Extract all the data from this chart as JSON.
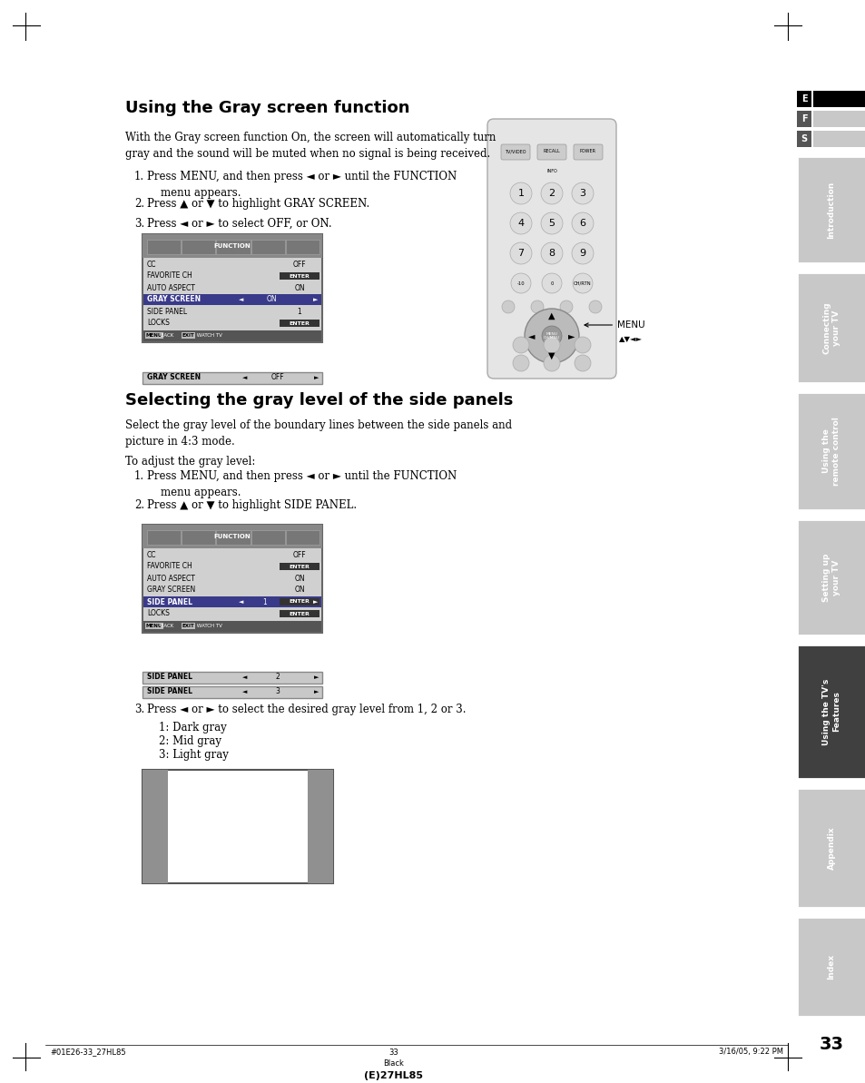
{
  "bg_color": "#ffffff",
  "title1": "Using the Gray screen function",
  "title2": "Selecting the gray level of the side panels",
  "body1": "With the Gray screen function On, the screen will automatically turn\ngray and the sound will be muted when no signal is being received.",
  "steps1": [
    "Press MENU, and then press ◄ or ► until the FUNCTION\n    menu appears.",
    "Press ▲ or ▼ to highlight GRAY SCREEN.",
    "Press ◄ or ► to select OFF, or ON."
  ],
  "body2": "Select the gray level of the boundary lines between the side panels and\npicture in 4:3 mode.",
  "pre2": "To adjust the gray level:",
  "steps2": [
    "Press MENU, and then press ◄ or ► until the FUNCTION\n    menu appears.",
    "Press ▲ or ▼ to highlight SIDE PANEL."
  ],
  "step3_text": "Press ◄ or ► to select the desired gray level from 1, 2 or 3.",
  "gray_levels": [
    "1: Dark gray",
    "2: Mid gray",
    "3: Light gray"
  ],
  "footer_left": "#01E26-33_27HL85",
  "footer_center": "33",
  "footer_right": "3/16/05, 9:22 PM",
  "footer_black": "Black",
  "footer_model": "(E)27HL85",
  "page_num": "33",
  "tab_sections": [
    "Introduction",
    "Connecting\nyour TV",
    "Using the\nremote control",
    "Setting up\nyour TV",
    "Using the TV's\nFeatures",
    "Appendix",
    "Index"
  ],
  "tab_active": 4,
  "tab_section_colors": [
    "#c8c8c8",
    "#c8c8c8",
    "#c8c8c8",
    "#c8c8c8",
    "#404040",
    "#c8c8c8",
    "#c8c8c8"
  ],
  "menu1_rows": [
    [
      "CC",
      "OFF",
      false,
      false
    ],
    [
      "FAVORITE CH",
      "ENTER",
      false,
      true
    ],
    [
      "AUTO ASPECT",
      "ON",
      false,
      false
    ],
    [
      "GRAY SCREEN",
      "ON",
      true,
      false
    ],
    [
      "SIDE PANEL",
      "1",
      false,
      false
    ],
    [
      "LOCKS",
      "ENTER",
      false,
      true
    ]
  ],
  "menu2_rows": [
    [
      "CC",
      "OFF",
      false,
      false
    ],
    [
      "FAVORITE CH",
      "ENTER",
      false,
      true
    ],
    [
      "AUTO ASPECT",
      "ON",
      false,
      false
    ],
    [
      "GRAY SCREEN",
      "ON",
      false,
      false
    ],
    [
      "SIDE PANEL",
      "1",
      true,
      false
    ],
    [
      "LOCKS",
      "ENTER",
      false,
      true
    ]
  ]
}
